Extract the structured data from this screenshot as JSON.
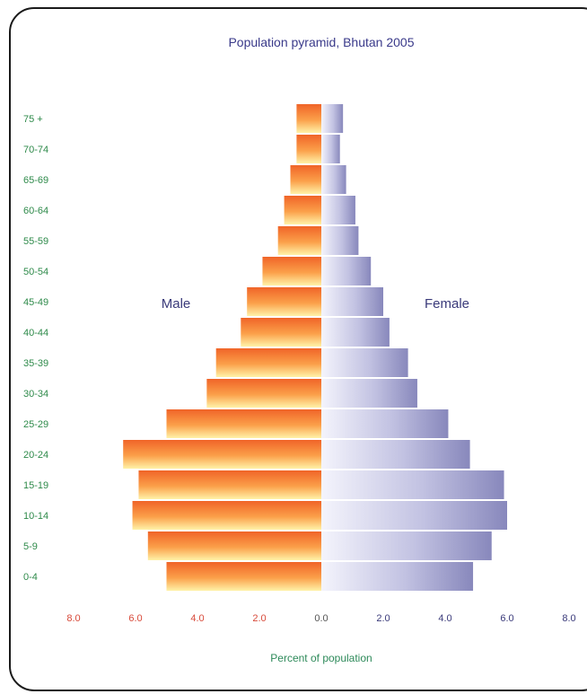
{
  "chart_data": {
    "type": "bar",
    "orientation": "horizontal-pyramid",
    "title": "Population pyramid, Bhutan 2005",
    "xlabel": "Percent of population",
    "categories": [
      "0-4",
      "5-9",
      "10-14",
      "15-19",
      "20-24",
      "25-29",
      "30-34",
      "35-39",
      "40-44",
      "45-49",
      "50-54",
      "55-59",
      "60-64",
      "65-69",
      "70-74",
      "75 +"
    ],
    "series": [
      {
        "name": "Male",
        "values": [
          5.0,
          5.6,
          6.1,
          5.9,
          6.4,
          5.0,
          3.7,
          3.4,
          2.6,
          2.4,
          1.9,
          1.4,
          1.2,
          1.0,
          0.8,
          0.8
        ]
      },
      {
        "name": "Female",
        "values": [
          4.9,
          5.5,
          6.0,
          5.9,
          4.8,
          4.1,
          3.1,
          2.8,
          2.2,
          2.0,
          1.6,
          1.2,
          1.1,
          0.8,
          0.6,
          0.7
        ]
      }
    ],
    "xlim": [
      -8.0,
      8.0
    ],
    "x_ticks": [
      "8.0",
      "6.0",
      "4.0",
      "2.0",
      "0.0",
      "2.0",
      "4.0",
      "6.0",
      "8.0"
    ],
    "legend": "inline labels beside bars",
    "grid": false,
    "colors": {
      "male_dark": "#f06428",
      "male_light": "#fff2a8",
      "female_dark": "#9090c0",
      "female_light": "#f2f2fb",
      "age_label": "#2e8a4a",
      "left_tick": "#d84a3a",
      "title": "#3a3a8a"
    }
  }
}
